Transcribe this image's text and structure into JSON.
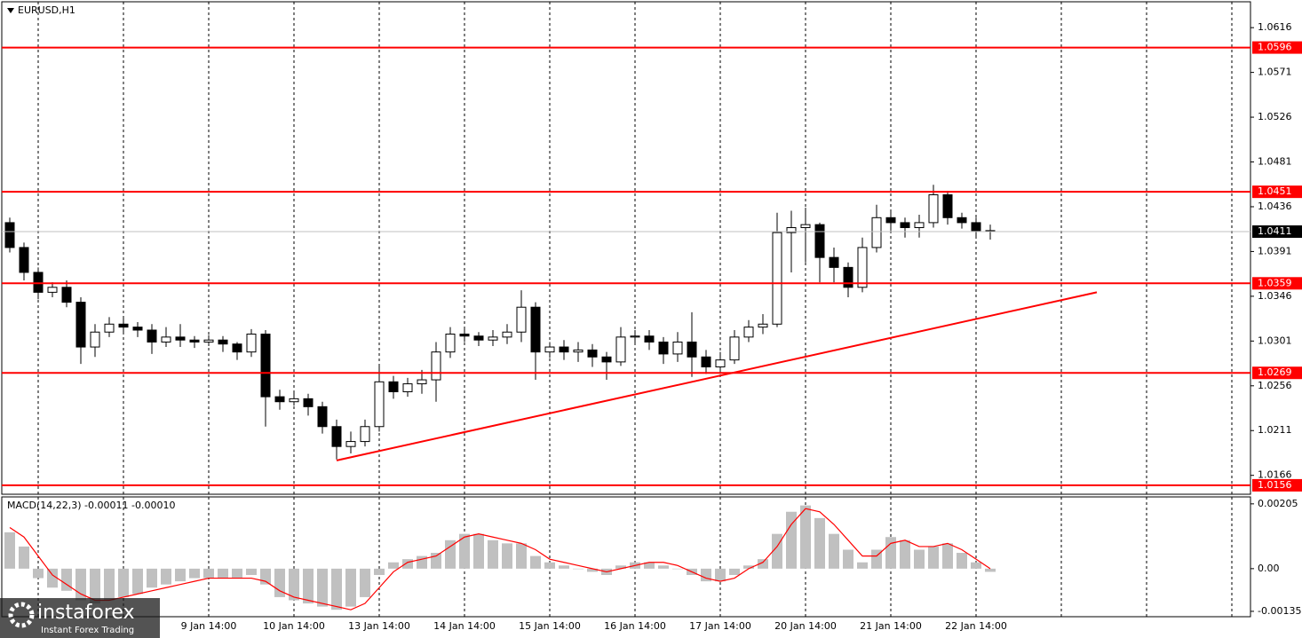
{
  "chart_data": [
    {
      "type": "candlestick",
      "title": "EURUSD,H1",
      "categories": [
        null,
        null,
        null,
        null,
        null,
        null,
        null,
        null,
        null,
        null,
        null,
        null,
        null,
        null,
        "9 Jan 14:00",
        null,
        null,
        null,
        null,
        null,
        "10 Jan 14:00",
        null,
        null,
        null,
        null,
        null,
        "13 Jan 14:00",
        null,
        null,
        null,
        null,
        null,
        "14 Jan 14:00",
        null,
        null,
        null,
        null,
        null,
        "15 Jan 14:00",
        null,
        null,
        null,
        null,
        null,
        "16 Jan 14:00",
        null,
        null,
        null,
        null,
        null,
        "17 Jan 14:00",
        null,
        null,
        null,
        null,
        null,
        "20 Jan 14:00",
        null,
        null,
        null,
        null,
        null,
        "21 Jan 14:00",
        null,
        null,
        null,
        null,
        null,
        "22 Jan 14:00",
        null
      ],
      "open": [
        1.042,
        1.0395,
        1.037,
        1.035,
        1.0355,
        1.034,
        1.0295,
        1.031,
        1.0318,
        1.0315,
        1.0312,
        1.03,
        1.0305,
        1.0302,
        1.03,
        1.0302,
        1.0298,
        1.029,
        1.0308,
        1.0245,
        1.024,
        1.0243,
        1.0235,
        1.0215,
        1.0195,
        1.02,
        1.0215,
        1.026,
        1.025,
        1.0258,
        1.0262,
        1.029,
        1.0308,
        1.0306,
        1.0302,
        1.0305,
        1.031,
        1.0335,
        1.029,
        1.0295,
        1.029,
        1.0292,
        1.0285,
        1.028,
        1.0305,
        1.0306,
        1.03,
        1.0288,
        1.03,
        1.0285,
        1.0275,
        1.0282,
        1.0305,
        1.0315,
        1.0318,
        1.041,
        1.0415,
        1.0418,
        1.0385,
        1.0375,
        1.0355,
        1.0395,
        1.0425,
        1.042,
        1.0415,
        1.042,
        1.0448,
        1.0425,
        1.042,
        1.0412
      ],
      "high": [
        1.0425,
        1.04,
        1.0375,
        1.036,
        1.0362,
        1.0345,
        1.0318,
        1.0325,
        1.0325,
        1.032,
        1.0318,
        1.0315,
        1.0318,
        1.0306,
        1.0307,
        1.0306,
        1.03,
        1.0313,
        1.0312,
        1.0252,
        1.025,
        1.0248,
        1.024,
        1.0222,
        1.021,
        1.0222,
        1.0276,
        1.0266,
        1.0264,
        1.0272,
        1.03,
        1.0315,
        1.0314,
        1.031,
        1.0312,
        1.0318,
        1.0352,
        1.034,
        1.03,
        1.0302,
        1.03,
        1.0298,
        1.029,
        1.0315,
        1.0312,
        1.0312,
        1.0305,
        1.031,
        1.033,
        1.0292,
        1.029,
        1.0312,
        1.0322,
        1.0328,
        1.043,
        1.0432,
        1.0435,
        1.042,
        1.0395,
        1.038,
        1.0405,
        1.0438,
        1.0432,
        1.0425,
        1.0428,
        1.0458,
        1.0452,
        1.043,
        1.0425,
        1.0418
      ],
      "low": [
        1.039,
        1.0362,
        1.0343,
        1.0345,
        1.0335,
        1.0278,
        1.0285,
        1.0305,
        1.0308,
        1.0305,
        1.0288,
        1.0295,
        1.0295,
        1.0294,
        1.0296,
        1.029,
        1.0282,
        1.0285,
        1.0215,
        1.0232,
        1.0236,
        1.0226,
        1.0208,
        1.0182,
        1.0188,
        1.0195,
        1.021,
        1.0243,
        1.0245,
        1.0248,
        1.024,
        1.0284,
        1.03,
        1.0296,
        1.0296,
        1.0298,
        1.03,
        1.0262,
        1.0284,
        1.0282,
        1.028,
        1.0275,
        1.0262,
        1.0276,
        1.0298,
        1.0292,
        1.0278,
        1.028,
        1.0265,
        1.0268,
        1.0268,
        1.0278,
        1.03,
        1.0308,
        1.0315,
        1.037,
        1.038,
        1.036,
        1.036,
        1.0345,
        1.035,
        1.039,
        1.0412,
        1.0405,
        1.0405,
        1.0415,
        1.0418,
        1.0414,
        1.0405,
        1.0403
      ],
      "close": [
        1.0395,
        1.037,
        1.035,
        1.0355,
        1.034,
        1.0295,
        1.031,
        1.0318,
        1.0315,
        1.0312,
        1.03,
        1.0305,
        1.0302,
        1.03,
        1.0302,
        1.0298,
        1.029,
        1.0308,
        1.0245,
        1.024,
        1.0243,
        1.0235,
        1.0215,
        1.0195,
        1.02,
        1.0215,
        1.026,
        1.025,
        1.0258,
        1.0262,
        1.029,
        1.0308,
        1.0306,
        1.0302,
        1.0305,
        1.031,
        1.0335,
        1.029,
        1.0295,
        1.029,
        1.0292,
        1.0285,
        1.028,
        1.0305,
        1.0306,
        1.03,
        1.0288,
        1.03,
        1.0285,
        1.0275,
        1.0282,
        1.0305,
        1.0315,
        1.0318,
        1.041,
        1.0415,
        1.0418,
        1.0385,
        1.0375,
        1.0355,
        1.0395,
        1.0425,
        1.042,
        1.0415,
        1.042,
        1.0448,
        1.0425,
        1.042,
        1.0412,
        1.0411
      ],
      "up_color": "#ffffff",
      "down_color": "#000000",
      "ylim": [
        1.0147,
        1.0642
      ],
      "yticks": [
        1.0616,
        1.0571,
        1.0526,
        1.0481,
        1.0436,
        1.0391,
        1.0346,
        1.0301,
        1.0256,
        1.0211,
        1.0166
      ],
      "levels": [
        1.0596,
        1.0451,
        1.0359,
        1.0269,
        1.0156
      ],
      "level_color": "#ff0000",
      "current_price": 1.0411,
      "trendline": {
        "x": [
          23,
          76.5
        ],
        "y": [
          1.0181,
          1.035
        ]
      }
    },
    {
      "type": "macd",
      "label": "MACD(14,22,3) -0.00011 -0.00010",
      "histogram": {
        "color": "#c0c0c0",
        "values": [
          0.00115,
          0.0007,
          -0.0003,
          -0.0006,
          -0.0007,
          -0.001,
          -0.0011,
          -0.001,
          -0.0009,
          -0.0008,
          -0.0006,
          -0.0005,
          -0.0004,
          -0.0003,
          -0.0003,
          -0.0003,
          -0.0003,
          -0.0002,
          -0.0005,
          -0.0009,
          -0.001,
          -0.0011,
          -0.0012,
          -0.0013,
          -0.0012,
          -0.0009,
          -0.0002,
          0.0002,
          0.0003,
          0.0004,
          0.0005,
          0.0009,
          0.0011,
          0.0011,
          0.0009,
          0.0008,
          0.0008,
          0.0004,
          0.0002,
          0.0001,
          0.0,
          -0.0001,
          -0.0002,
          0.0001,
          0.0002,
          0.0002,
          0.0001,
          0.0,
          -0.0002,
          -0.0004,
          -0.0004,
          -0.0002,
          0.0001,
          0.0003,
          0.0011,
          0.0018,
          0.002,
          0.0016,
          0.0011,
          0.0006,
          0.0002,
          0.0006,
          0.001,
          0.0009,
          0.0006,
          0.0007,
          0.0008,
          0.0005,
          0.0002,
          -0.0001
        ]
      },
      "signal": {
        "color": "#ff0000",
        "values": [
          0.0013,
          0.001,
          0.0004,
          -0.0002,
          -0.0005,
          -0.0008,
          -0.001,
          -0.001,
          -0.0009,
          -0.0008,
          -0.0007,
          -0.0006,
          -0.0005,
          -0.0004,
          -0.0003,
          -0.0003,
          -0.0003,
          -0.0003,
          -0.0004,
          -0.0007,
          -0.0009,
          -0.001,
          -0.0011,
          -0.0012,
          -0.0013,
          -0.0011,
          -0.0006,
          -0.0001,
          0.0002,
          0.0003,
          0.0004,
          0.0007,
          0.001,
          0.0011,
          0.001,
          0.0009,
          0.0008,
          0.0006,
          0.0003,
          0.0002,
          0.0001,
          0.0,
          -0.0001,
          0.0,
          0.0001,
          0.0002,
          0.0002,
          0.0001,
          -0.0001,
          -0.0003,
          -0.0004,
          -0.0003,
          0.0,
          0.0002,
          0.0007,
          0.0014,
          0.0019,
          0.0018,
          0.0014,
          0.0009,
          0.0004,
          0.0004,
          0.0008,
          0.0009,
          0.0007,
          0.0007,
          0.0008,
          0.0006,
          0.0003,
          0.0
        ]
      },
      "ylim": [
        -0.00152,
        0.00227
      ],
      "yticks": [
        0.00205,
        {
          "value": 0,
          "label": "0.00"
        },
        -0.00135
      ]
    }
  ],
  "logo": {
    "name": "instaforex",
    "tagline": "Instant Forex Trading"
  }
}
